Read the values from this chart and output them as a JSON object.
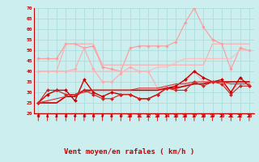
{
  "x": [
    0,
    1,
    2,
    3,
    4,
    5,
    6,
    7,
    8,
    9,
    10,
    11,
    12,
    13,
    14,
    15,
    16,
    17,
    18,
    19,
    20,
    21,
    22,
    23
  ],
  "series": [
    {
      "color": "#FF9999",
      "linewidth": 0.8,
      "marker": "D",
      "markersize": 1.8,
      "values": [
        46,
        46,
        46,
        53,
        53,
        51,
        52,
        42,
        41,
        40,
        51,
        52,
        52,
        52,
        52,
        54,
        63,
        70,
        61,
        55,
        53,
        41,
        51,
        50
      ]
    },
    {
      "color": "#FFAAAA",
      "linewidth": 0.8,
      "marker": null,
      "markersize": 0,
      "values": [
        40,
        40,
        40,
        53,
        53,
        53,
        53,
        43,
        43,
        43,
        43,
        43,
        43,
        43,
        43,
        43,
        43,
        43,
        43,
        53,
        53,
        53,
        53,
        53
      ]
    },
    {
      "color": "#FFAAAA",
      "linewidth": 0.8,
      "marker": "D",
      "markersize": 1.8,
      "values": [
        40,
        40,
        40,
        40,
        41,
        51,
        41,
        35,
        35,
        39,
        42,
        40,
        40,
        32,
        32,
        32,
        35,
        40,
        35,
        35,
        35,
        30,
        35,
        34
      ]
    },
    {
      "color": "#FFBBBB",
      "linewidth": 0.8,
      "marker": null,
      "markersize": 0,
      "values": [
        40,
        40,
        40,
        40,
        40,
        40,
        40,
        40,
        40,
        40,
        40,
        40,
        40,
        42,
        42,
        44,
        46,
        46,
        46,
        46,
        46,
        46,
        50,
        50
      ]
    },
    {
      "color": "#CC0000",
      "linewidth": 1.0,
      "marker": "D",
      "markersize": 2.0,
      "values": [
        25,
        29,
        31,
        31,
        26,
        36,
        30,
        28,
        30,
        29,
        29,
        27,
        27,
        29,
        32,
        33,
        36,
        40,
        37,
        35,
        36,
        30,
        37,
        33
      ]
    },
    {
      "color": "#CC0000",
      "linewidth": 1.2,
      "marker": null,
      "markersize": 0,
      "values": [
        25,
        25,
        25,
        28,
        28,
        31,
        31,
        31,
        31,
        31,
        31,
        31,
        31,
        31,
        32,
        32,
        33,
        34,
        34,
        35,
        35,
        35,
        35,
        35
      ]
    },
    {
      "color": "#CC2222",
      "linewidth": 0.8,
      "marker": "D",
      "markersize": 2.0,
      "values": [
        25,
        31,
        31,
        29,
        29,
        31,
        29,
        27,
        27,
        29,
        29,
        27,
        27,
        29,
        32,
        31,
        31,
        35,
        33,
        35,
        34,
        29,
        33,
        33
      ]
    },
    {
      "color": "#DD3333",
      "linewidth": 0.8,
      "marker": null,
      "markersize": 0,
      "values": [
        25,
        26,
        27,
        28,
        29,
        30,
        31,
        31,
        31,
        31,
        31,
        32,
        32,
        32,
        33,
        34,
        34,
        35,
        35,
        35,
        35,
        34,
        34,
        34
      ]
    }
  ],
  "xlabel": "Vent moyen/en rafales ( km/h )",
  "xlim": [
    -0.5,
    23.5
  ],
  "ylim": [
    20,
    70
  ],
  "yticks": [
    20,
    25,
    30,
    35,
    40,
    45,
    50,
    55,
    60,
    65,
    70
  ],
  "xticks": [
    0,
    1,
    2,
    3,
    4,
    5,
    6,
    7,
    8,
    9,
    10,
    11,
    12,
    13,
    14,
    15,
    16,
    17,
    18,
    19,
    20,
    21,
    22,
    23
  ],
  "grid_color": "#AADDDD",
  "bg_color": "#CCEEEE",
  "red_color": "#CC0000"
}
